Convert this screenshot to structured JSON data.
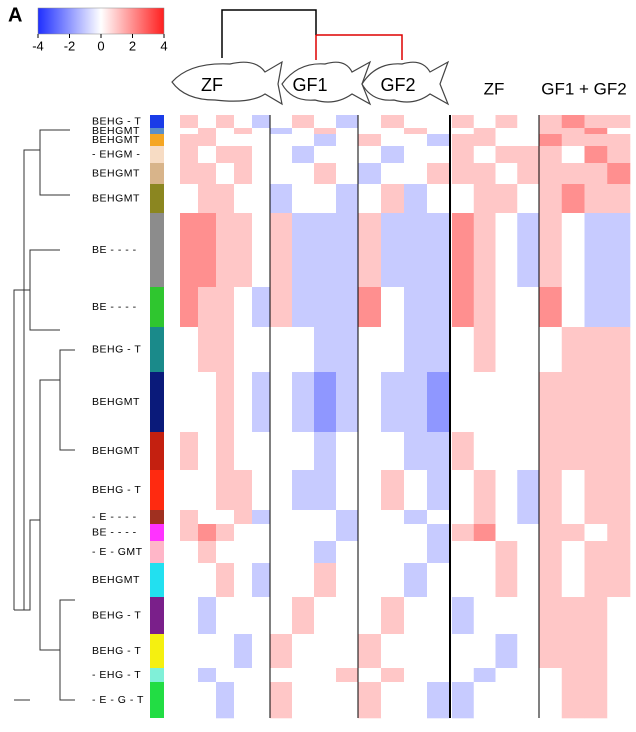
{
  "chart_data": {
    "type": "heatmap",
    "panel_label": "A",
    "colorbar": {
      "lim": [
        -4,
        4
      ],
      "ticks": [
        -4,
        -2,
        0,
        2,
        4
      ],
      "colors": [
        "#1f2fff",
        "#ffffff",
        "#ff1f1f"
      ]
    },
    "fish_labels": [
      "ZF",
      "GF1",
      "GF2"
    ],
    "right_labels": [
      "ZF",
      "GF1 + GF2"
    ],
    "row_groups": [
      {
        "label": "BEHG - T",
        "color": "#1a3ce8"
      },
      {
        "label": "BEHGMT",
        "color": "#5b8fc9"
      },
      {
        "label": "BEHGMT",
        "color": "#f5a623"
      },
      {
        "label": "- EHGM -",
        "color": "#f7dcc4"
      },
      {
        "label": "BEHGMT",
        "color": "#d8b48a"
      },
      {
        "label": "BEHGMT",
        "color": "#8b8620"
      },
      {
        "label": "BE - - - -",
        "color": "#8c8c8c"
      },
      {
        "label": "BE - - - -",
        "color": "#2fc62f"
      },
      {
        "label": "BEHG - T",
        "color": "#1a8a8a"
      },
      {
        "label": "BEHGMT",
        "color": "#0a1a7a"
      },
      {
        "label": "BEHGMT",
        "color": "#c42010"
      },
      {
        "label": "BEHG - T",
        "color": "#ff2a10"
      },
      {
        "label": "- E - - - -",
        "color": "#a03020"
      },
      {
        "label": "BE - - - -",
        "color": "#ff33ff"
      },
      {
        "label": "- E - GMT",
        "color": "#ffb6c8"
      },
      {
        "label": "BEHGMT",
        "color": "#22e0f0"
      },
      {
        "label": "BEHG - T",
        "color": "#7a1f8a"
      },
      {
        "label": "BEHG - T",
        "color": "#f5f010"
      },
      {
        "label": "- EHG - T",
        "color": "#80f0d8"
      },
      {
        "label": "- E - G - T",
        "color": "#22dd44"
      }
    ],
    "values": [
      [
        1,
        0,
        1,
        0,
        -1,
        0,
        1,
        0,
        -1,
        0,
        1,
        0,
        0,
        1,
        0,
        1,
        0,
        1,
        2,
        1,
        1
      ],
      [
        0,
        1,
        0,
        1,
        0,
        -1,
        0,
        1,
        0,
        0,
        0,
        1,
        0,
        0,
        1,
        0,
        0,
        1,
        1,
        2,
        0
      ],
      [
        1,
        1,
        0,
        0,
        0,
        0,
        0,
        -1,
        0,
        1,
        0,
        0,
        -1,
        1,
        1,
        0,
        0,
        2,
        1,
        1,
        1
      ],
      [
        1,
        0,
        1,
        1,
        0,
        0,
        -1,
        0,
        0,
        0,
        -1,
        0,
        0,
        1,
        0,
        1,
        1,
        1,
        0,
        2,
        1
      ],
      [
        1,
        1,
        0,
        1,
        0,
        0,
        0,
        1,
        0,
        -1,
        0,
        0,
        1,
        1,
        1,
        0,
        1,
        1,
        1,
        1,
        2
      ],
      [
        0,
        1,
        1,
        0,
        0,
        -1,
        0,
        0,
        -1,
        0,
        1,
        -1,
        0,
        0,
        1,
        1,
        0,
        1,
        2,
        1,
        1
      ],
      [
        2,
        2,
        1,
        1,
        0,
        1,
        -1,
        -1,
        -1,
        1,
        -1,
        -1,
        -1,
        2,
        1,
        0,
        -1,
        1,
        0,
        -1,
        -1
      ],
      [
        2,
        1,
        1,
        0,
        -1,
        1,
        -1,
        -1,
        -1,
        2,
        0,
        -1,
        -1,
        2,
        1,
        0,
        0,
        2,
        0,
        -1,
        -1
      ],
      [
        0,
        1,
        1,
        0,
        0,
        0,
        0,
        -1,
        -1,
        0,
        0,
        -1,
        -1,
        0,
        1,
        0,
        0,
        0,
        1,
        1,
        1
      ],
      [
        0,
        0,
        1,
        0,
        -1,
        0,
        -1,
        -2,
        -1,
        0,
        -1,
        -1,
        -2,
        0,
        0,
        0,
        0,
        1,
        1,
        1,
        1
      ],
      [
        1,
        0,
        1,
        0,
        0,
        0,
        0,
        -1,
        0,
        0,
        0,
        -1,
        -1,
        1,
        0,
        0,
        0,
        1,
        1,
        1,
        1
      ],
      [
        0,
        0,
        1,
        1,
        0,
        0,
        -1,
        -1,
        0,
        0,
        1,
        0,
        -1,
        0,
        1,
        0,
        -1,
        1,
        0,
        1,
        1
      ],
      [
        1,
        0,
        0,
        1,
        -1,
        0,
        0,
        0,
        -1,
        0,
        0,
        -1,
        0,
        0,
        1,
        0,
        -1,
        1,
        0,
        1,
        1
      ],
      [
        1,
        2,
        1,
        0,
        0,
        0,
        0,
        0,
        -1,
        0,
        0,
        0,
        -1,
        1,
        2,
        0,
        0,
        1,
        1,
        0,
        1
      ],
      [
        0,
        1,
        0,
        0,
        0,
        0,
        0,
        -1,
        0,
        0,
        0,
        0,
        -1,
        0,
        0,
        1,
        0,
        1,
        0,
        1,
        1
      ],
      [
        0,
        0,
        1,
        0,
        -1,
        0,
        0,
        1,
        0,
        0,
        0,
        -1,
        0,
        0,
        0,
        1,
        0,
        1,
        0,
        1,
        1
      ],
      [
        0,
        -1,
        0,
        0,
        0,
        0,
        1,
        0,
        0,
        0,
        1,
        0,
        0,
        -1,
        0,
        0,
        0,
        1,
        1,
        1,
        0
      ],
      [
        0,
        0,
        0,
        -1,
        0,
        1,
        0,
        0,
        0,
        1,
        0,
        0,
        0,
        0,
        0,
        -1,
        0,
        1,
        1,
        1,
        0
      ],
      [
        0,
        -1,
        0,
        0,
        0,
        0,
        0,
        0,
        1,
        0,
        1,
        0,
        0,
        0,
        -1,
        0,
        0,
        0,
        1,
        1,
        0
      ],
      [
        0,
        0,
        -1,
        0,
        0,
        1,
        0,
        0,
        0,
        1,
        0,
        0,
        -1,
        -1,
        0,
        0,
        0,
        0,
        1,
        1,
        0
      ]
    ]
  }
}
